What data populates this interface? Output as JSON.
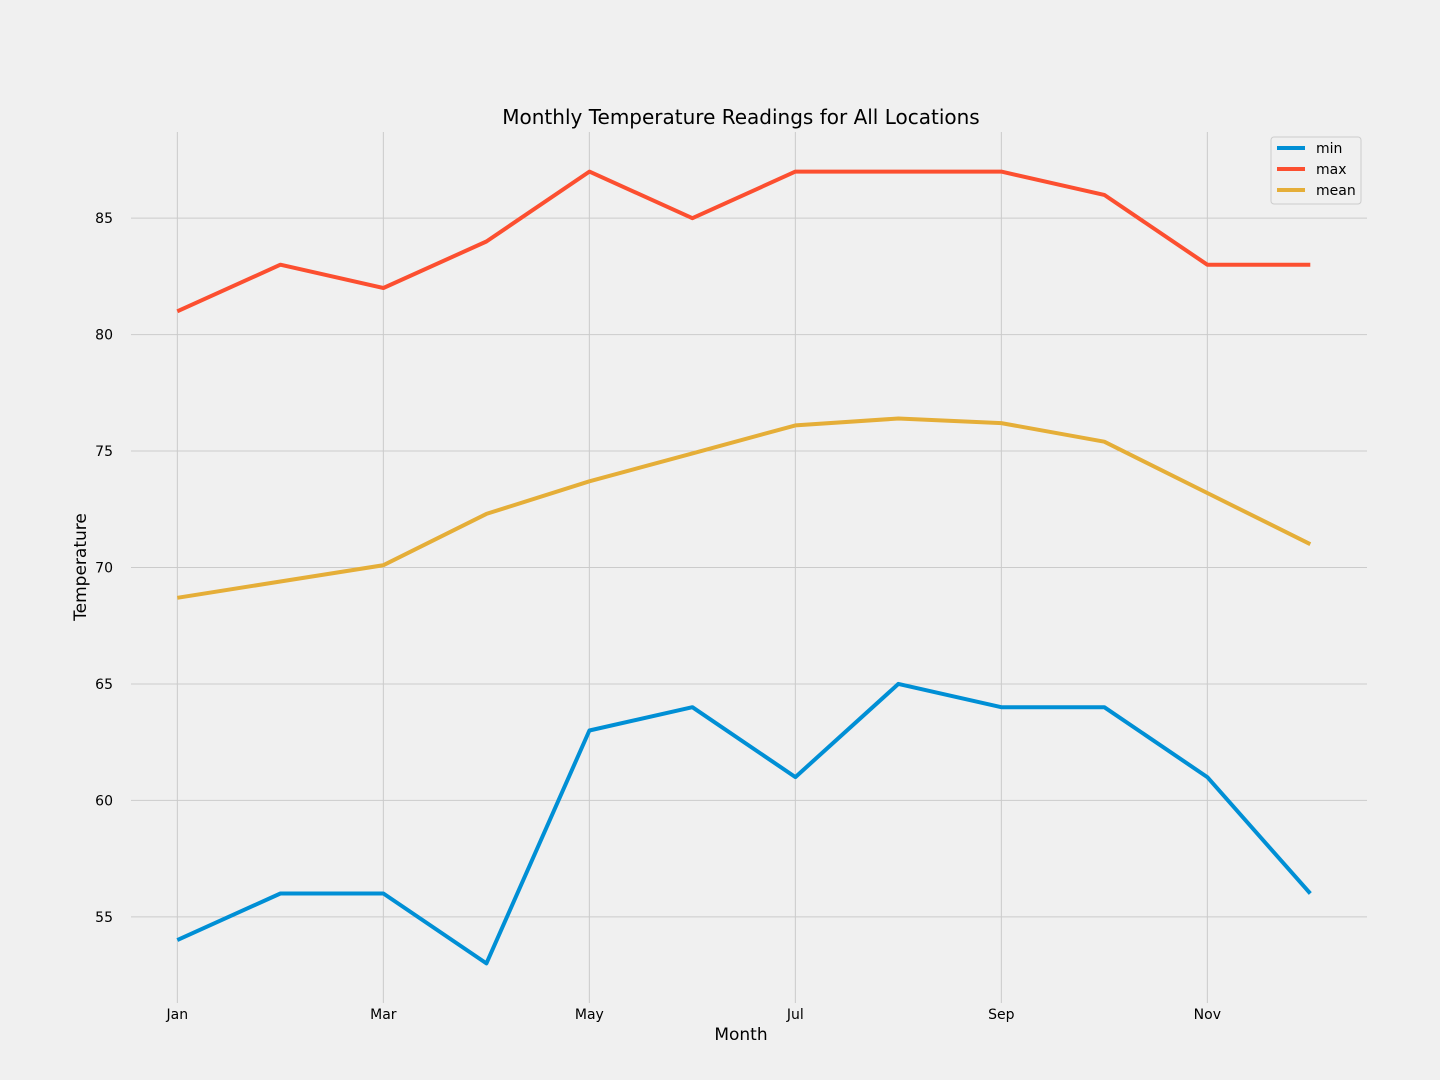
{
  "chart_data": {
    "type": "line",
    "title": "Monthly Temperature Readings for All Locations",
    "xlabel": "Month",
    "ylabel": "Temperature",
    "x": [
      1,
      2,
      3,
      4,
      5,
      6,
      7,
      8,
      9,
      10,
      11,
      12
    ],
    "xticks": [
      {
        "value": 1,
        "label": "Jan"
      },
      {
        "value": 3,
        "label": "Mar"
      },
      {
        "value": 5,
        "label": "May"
      },
      {
        "value": 7,
        "label": "Jul"
      },
      {
        "value": 9,
        "label": "Sep"
      },
      {
        "value": 11,
        "label": "Nov"
      }
    ],
    "yticks": [
      55,
      60,
      65,
      70,
      75,
      80,
      85
    ],
    "xlim": [
      0.55,
      12.55
    ],
    "ylim": [
      51.3,
      88.7
    ],
    "grid": true,
    "legend_position": "top-right",
    "series": [
      {
        "name": "min",
        "color": "#008fd5",
        "values": [
          54,
          56,
          56,
          53,
          63,
          64,
          61,
          65,
          64,
          64,
          61,
          56
        ]
      },
      {
        "name": "max",
        "color": "#fc4f30",
        "values": [
          81,
          83,
          82,
          84,
          87,
          85,
          87,
          87,
          87,
          86,
          83,
          83
        ]
      },
      {
        "name": "mean",
        "color": "#e5ae38",
        "values": [
          68.7,
          69.4,
          70.1,
          72.3,
          73.7,
          74.9,
          76.1,
          76.4,
          76.2,
          75.4,
          73.2,
          71.0
        ]
      }
    ]
  }
}
